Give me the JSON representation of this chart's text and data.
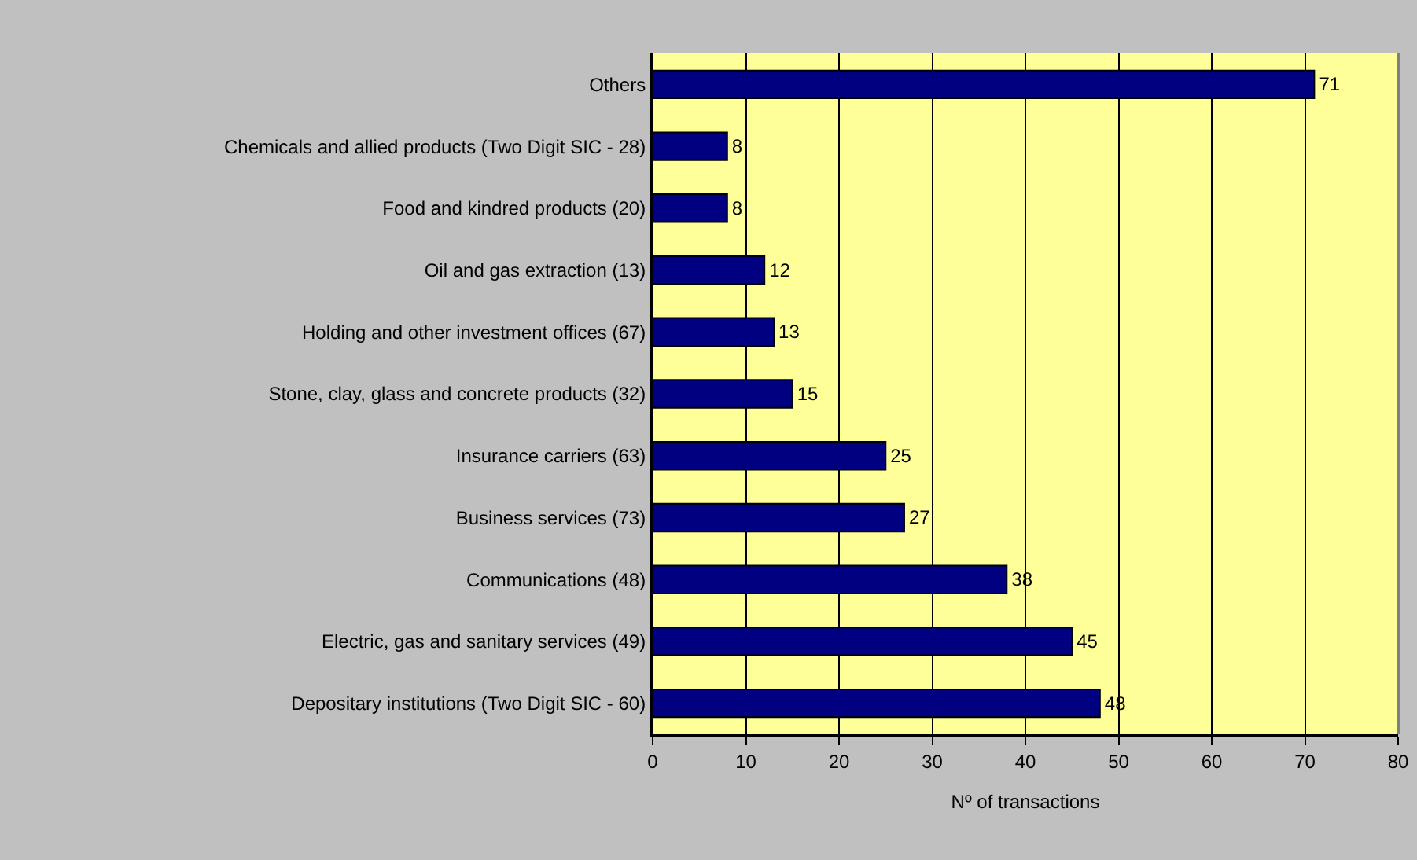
{
  "chart_data": {
    "type": "bar",
    "orientation": "horizontal",
    "xlabel": "Nº of transactions",
    "categories": [
      "Others",
      "Chemicals and allied products (Two Digit SIC - 28)",
      "Food and kindred products (20)",
      "Oil and gas extraction (13)",
      "Holding and other investment offices (67)",
      "Stone, clay, glass and concrete products (32)",
      "Insurance carriers (63)",
      "Business services (73)",
      "Communications (48)",
      "Electric, gas and sanitary services (49)",
      "Depositary institutions (Two Digit SIC - 60)"
    ],
    "values": [
      71,
      8,
      8,
      12,
      13,
      15,
      25,
      27,
      38,
      45,
      48
    ],
    "color": "#000080",
    "xlim": [
      0,
      80
    ],
    "xticks": [
      0,
      10,
      20,
      30,
      40,
      50,
      60,
      70,
      80
    ],
    "grid": "x",
    "data_labels": true
  }
}
